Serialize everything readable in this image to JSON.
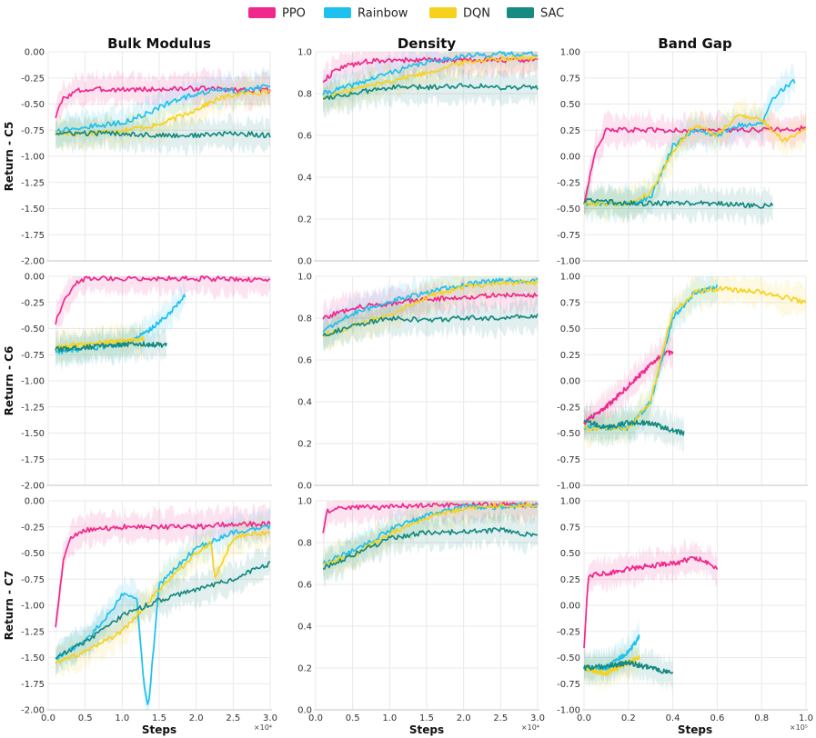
{
  "legend": [
    {
      "name": "PPO",
      "color": "#f0288c"
    },
    {
      "name": "Rainbow",
      "color": "#1ec0f0"
    },
    {
      "name": "DQN",
      "color": "#f6d21e"
    },
    {
      "name": "SAC",
      "color": "#178a82"
    }
  ],
  "column_titles": [
    "Bulk Modulus",
    "Density",
    "Band Gap"
  ],
  "row_labels": [
    "Return - C5",
    "Return - C6",
    "Return - C7"
  ],
  "xlabel": "Steps",
  "x_multipliers": [
    "×10⁴",
    "×10⁴",
    "×10⁵"
  ],
  "x_ticks": [
    [
      "0.0",
      "0.5",
      "1.0",
      "1.5",
      "2.0",
      "2.5",
      "3.0"
    ],
    [
      "0.0",
      "0.5",
      "1.0",
      "1.5",
      "2.0",
      "2.5",
      "3.0"
    ],
    [
      "0.0",
      "0.2",
      "0.4",
      "0.6",
      "0.8",
      "1.0"
    ]
  ],
  "y_ticks": [
    [
      "0.00",
      "-0.25",
      "-0.50",
      "-0.75",
      "-1.00",
      "-1.25",
      "-1.50",
      "-1.75",
      "-2.00"
    ],
    [
      "0.0",
      "0.2",
      "0.4",
      "0.6",
      "0.8",
      "1.0"
    ],
    [
      "1.00",
      "0.75",
      "0.50",
      "0.25",
      "0.00",
      "-0.25",
      "-0.50",
      "-0.75",
      "-1.00"
    ]
  ],
  "chart_data": [
    {
      "type": "line",
      "row": 0,
      "col": 0,
      "title": "Bulk Modulus",
      "ylabel": "Return - C5",
      "xlim": [
        0,
        3.0
      ],
      "ylim": [
        -2.0,
        0.0
      ],
      "series": [
        {
          "name": "PPO",
          "x": [
            0.1,
            0.2,
            0.4,
            0.7,
            1.0,
            1.5,
            2.0,
            2.5,
            3.0
          ],
          "values": [
            -0.62,
            -0.45,
            -0.37,
            -0.36,
            -0.36,
            -0.36,
            -0.35,
            -0.36,
            -0.37
          ]
        },
        {
          "name": "Rainbow",
          "x": [
            0.1,
            0.5,
            1.0,
            1.3,
            1.6,
            2.0,
            2.3,
            2.6,
            3.0
          ],
          "values": [
            -0.75,
            -0.72,
            -0.68,
            -0.6,
            -0.5,
            -0.4,
            -0.36,
            -0.38,
            -0.32
          ]
        },
        {
          "name": "DQN",
          "x": [
            0.1,
            0.5,
            1.0,
            1.5,
            2.0,
            2.3,
            2.6,
            3.0
          ],
          "values": [
            -0.78,
            -0.78,
            -0.75,
            -0.7,
            -0.55,
            -0.45,
            -0.4,
            -0.38
          ]
        },
        {
          "name": "SAC",
          "x": [
            0.1,
            0.5,
            1.0,
            1.5,
            2.0,
            2.5,
            3.0
          ],
          "values": [
            -0.78,
            -0.78,
            -0.78,
            -0.8,
            -0.8,
            -0.78,
            -0.8
          ]
        }
      ]
    },
    {
      "type": "line",
      "row": 0,
      "col": 1,
      "title": "Density",
      "ylabel": "",
      "xlim": [
        0,
        3.0
      ],
      "ylim": [
        0.0,
        1.0
      ],
      "series": [
        {
          "name": "PPO",
          "x": [
            0.1,
            0.3,
            0.6,
            1.0,
            1.5,
            2.0,
            2.5,
            3.0
          ],
          "values": [
            0.86,
            0.92,
            0.95,
            0.96,
            0.96,
            0.96,
            0.96,
            0.96
          ]
        },
        {
          "name": "Rainbow",
          "x": [
            0.1,
            0.5,
            1.0,
            1.5,
            2.0,
            2.5,
            3.0
          ],
          "values": [
            0.8,
            0.84,
            0.9,
            0.95,
            0.98,
            0.99,
            0.99
          ]
        },
        {
          "name": "DQN",
          "x": [
            0.1,
            0.5,
            1.0,
            1.5,
            2.0,
            2.5,
            3.0
          ],
          "values": [
            0.78,
            0.82,
            0.86,
            0.9,
            0.95,
            0.97,
            0.97
          ]
        },
        {
          "name": "SAC",
          "x": [
            0.1,
            0.5,
            1.0,
            1.5,
            2.0,
            2.5,
            3.0
          ],
          "values": [
            0.78,
            0.8,
            0.83,
            0.83,
            0.84,
            0.83,
            0.83
          ]
        }
      ]
    },
    {
      "type": "line",
      "row": 0,
      "col": 2,
      "title": "Band Gap",
      "ylabel": "",
      "xlim": [
        0,
        1.0
      ],
      "ylim": [
        -1.0,
        1.0
      ],
      "series": [
        {
          "name": "PPO",
          "x": [
            0.0,
            0.05,
            0.1,
            0.2,
            0.4,
            0.6,
            0.8,
            1.0
          ],
          "values": [
            -0.45,
            0.05,
            0.25,
            0.25,
            0.25,
            0.25,
            0.25,
            0.27
          ]
        },
        {
          "name": "Rainbow",
          "x": [
            0.0,
            0.2,
            0.3,
            0.4,
            0.5,
            0.6,
            0.7,
            0.8,
            0.85,
            0.9,
            0.95
          ],
          "values": [
            -0.45,
            -0.45,
            -0.4,
            0.1,
            0.25,
            0.2,
            0.3,
            0.3,
            0.55,
            0.65,
            0.72
          ]
        },
        {
          "name": "DQN",
          "x": [
            0.0,
            0.2,
            0.3,
            0.4,
            0.5,
            0.6,
            0.7,
            0.8,
            0.9,
            1.0
          ],
          "values": [
            -0.45,
            -0.45,
            -0.35,
            0.05,
            0.3,
            0.2,
            0.4,
            0.35,
            0.15,
            0.27
          ]
        },
        {
          "name": "SAC",
          "x": [
            0.0,
            0.2,
            0.4,
            0.6,
            0.8,
            0.85
          ],
          "values": [
            -0.42,
            -0.45,
            -0.45,
            -0.45,
            -0.48,
            -0.45
          ]
        }
      ]
    },
    {
      "type": "line",
      "row": 1,
      "col": 0,
      "title": "",
      "ylabel": "Return - C6",
      "xlim": [
        0,
        3.0
      ],
      "ylim": [
        -2.0,
        0.0
      ],
      "series": [
        {
          "name": "PPO",
          "x": [
            0.1,
            0.2,
            0.35,
            0.5,
            1.0,
            2.0,
            3.0
          ],
          "values": [
            -0.45,
            -0.25,
            -0.08,
            -0.02,
            -0.02,
            -0.02,
            -0.03
          ]
        },
        {
          "name": "Rainbow",
          "x": [
            0.1,
            0.5,
            1.0,
            1.3,
            1.6,
            1.85
          ],
          "values": [
            -0.72,
            -0.7,
            -0.65,
            -0.55,
            -0.38,
            -0.18
          ]
        },
        {
          "name": "DQN",
          "x": [
            0.1,
            0.5,
            1.0,
            1.3
          ],
          "values": [
            -0.68,
            -0.65,
            -0.62,
            -0.6
          ]
        },
        {
          "name": "SAC",
          "x": [
            0.1,
            0.5,
            1.0,
            1.3,
            1.6
          ],
          "values": [
            -0.7,
            -0.68,
            -0.65,
            -0.65,
            -0.66
          ]
        }
      ]
    },
    {
      "type": "line",
      "row": 1,
      "col": 1,
      "title": "",
      "ylabel": "",
      "xlim": [
        0,
        3.0
      ],
      "ylim": [
        0.0,
        1.0
      ],
      "series": [
        {
          "name": "PPO",
          "x": [
            0.1,
            0.5,
            1.0,
            1.5,
            2.0,
            2.5,
            3.0
          ],
          "values": [
            0.8,
            0.85,
            0.87,
            0.89,
            0.9,
            0.91,
            0.91
          ]
        },
        {
          "name": "Rainbow",
          "x": [
            0.1,
            0.5,
            1.0,
            1.5,
            2.0,
            2.5,
            3.0
          ],
          "values": [
            0.74,
            0.82,
            0.88,
            0.92,
            0.96,
            0.98,
            0.98
          ]
        },
        {
          "name": "DQN",
          "x": [
            0.1,
            0.5,
            1.0,
            1.5,
            2.0,
            2.5,
            3.0
          ],
          "values": [
            0.72,
            0.76,
            0.82,
            0.9,
            0.95,
            0.97,
            0.97
          ]
        },
        {
          "name": "SAC",
          "x": [
            0.1,
            0.5,
            1.0,
            1.5,
            2.0,
            2.5,
            3.0
          ],
          "values": [
            0.72,
            0.76,
            0.8,
            0.79,
            0.8,
            0.8,
            0.81
          ]
        }
      ]
    },
    {
      "type": "line",
      "row": 1,
      "col": 2,
      "title": "",
      "ylabel": "",
      "xlim": [
        0,
        1.0
      ],
      "ylim": [
        -1.0,
        1.0
      ],
      "series": [
        {
          "name": "PPO",
          "x": [
            0.0,
            0.1,
            0.2,
            0.3,
            0.35,
            0.4
          ],
          "values": [
            -0.4,
            -0.25,
            -0.05,
            0.15,
            0.25,
            0.28
          ]
        },
        {
          "name": "Rainbow",
          "x": [
            0.0,
            0.2,
            0.3,
            0.35,
            0.4,
            0.5,
            0.6
          ],
          "values": [
            -0.45,
            -0.45,
            -0.2,
            0.2,
            0.6,
            0.85,
            0.9
          ]
        },
        {
          "name": "DQN",
          "x": [
            0.0,
            0.2,
            0.3,
            0.35,
            0.4,
            0.5,
            0.6,
            0.8,
            1.0
          ],
          "values": [
            -0.45,
            -0.45,
            -0.2,
            0.25,
            0.65,
            0.85,
            0.88,
            0.85,
            0.75
          ]
        },
        {
          "name": "SAC",
          "x": [
            0.0,
            0.1,
            0.2,
            0.3,
            0.4,
            0.45
          ],
          "values": [
            -0.38,
            -0.45,
            -0.4,
            -0.4,
            -0.48,
            -0.5
          ]
        }
      ]
    },
    {
      "type": "line",
      "row": 2,
      "col": 0,
      "title": "",
      "ylabel": "Return - C7",
      "xlim": [
        0,
        3.0
      ],
      "ylim": [
        -2.0,
        0.0
      ],
      "series": [
        {
          "name": "PPO",
          "x": [
            0.1,
            0.2,
            0.3,
            0.5,
            1.0,
            1.5,
            2.0,
            2.5,
            3.0
          ],
          "values": [
            -1.2,
            -0.6,
            -0.35,
            -0.28,
            -0.25,
            -0.25,
            -0.25,
            -0.22,
            -0.22
          ]
        },
        {
          "name": "Rainbow",
          "x": [
            0.1,
            0.5,
            0.8,
            1.0,
            1.2,
            1.3,
            1.35,
            1.5,
            2.0,
            2.5,
            3.0
          ],
          "values": [
            -1.5,
            -1.35,
            -1.1,
            -0.9,
            -0.95,
            -1.8,
            -2.0,
            -0.8,
            -0.45,
            -0.3,
            -0.25
          ]
        },
        {
          "name": "DQN",
          "x": [
            0.1,
            0.5,
            1.0,
            1.5,
            2.0,
            2.2,
            2.25,
            2.5,
            3.0
          ],
          "values": [
            -1.55,
            -1.45,
            -1.25,
            -0.85,
            -0.5,
            -0.4,
            -0.75,
            -0.35,
            -0.3
          ]
        },
        {
          "name": "SAC",
          "x": [
            0.1,
            0.5,
            1.0,
            1.5,
            2.0,
            2.5,
            3.0
          ],
          "values": [
            -1.5,
            -1.35,
            -1.1,
            -0.95,
            -0.85,
            -0.75,
            -0.6
          ]
        }
      ]
    },
    {
      "type": "line",
      "row": 2,
      "col": 1,
      "title": "",
      "ylabel": "",
      "xlim": [
        0,
        3.0
      ],
      "ylim": [
        0.0,
        1.0
      ],
      "series": [
        {
          "name": "PPO",
          "x": [
            0.1,
            0.15,
            0.3,
            0.5,
            1.0,
            1.5,
            2.0,
            2.5,
            3.0
          ],
          "values": [
            0.85,
            0.95,
            0.97,
            0.97,
            0.97,
            0.98,
            0.98,
            0.98,
            0.98
          ]
        },
        {
          "name": "Rainbow",
          "x": [
            0.1,
            0.5,
            1.0,
            1.5,
            2.0,
            2.5,
            3.0
          ],
          "values": [
            0.7,
            0.76,
            0.86,
            0.93,
            0.97,
            0.97,
            0.98
          ]
        },
        {
          "name": "DQN",
          "x": [
            0.1,
            0.5,
            1.0,
            1.5,
            2.0,
            2.5,
            3.0
          ],
          "values": [
            0.7,
            0.74,
            0.84,
            0.92,
            0.96,
            0.98,
            0.98
          ]
        },
        {
          "name": "SAC",
          "x": [
            0.1,
            0.5,
            1.0,
            1.5,
            2.0,
            2.5,
            3.0
          ],
          "values": [
            0.68,
            0.74,
            0.82,
            0.85,
            0.85,
            0.86,
            0.83
          ]
        }
      ]
    },
    {
      "type": "line",
      "row": 2,
      "col": 2,
      "title": "",
      "ylabel": "",
      "xlim": [
        0,
        1.0
      ],
      "ylim": [
        -1.0,
        1.0
      ],
      "series": [
        {
          "name": "PPO",
          "x": [
            0.0,
            0.02,
            0.05,
            0.1,
            0.2,
            0.3,
            0.4,
            0.5,
            0.55,
            0.6
          ],
          "values": [
            -0.4,
            0.28,
            0.3,
            0.3,
            0.35,
            0.38,
            0.4,
            0.45,
            0.42,
            0.35
          ]
        },
        {
          "name": "Rainbow",
          "x": [
            0.0,
            0.1,
            0.2,
            0.25
          ],
          "values": [
            -0.6,
            -0.6,
            -0.45,
            -0.3
          ]
        },
        {
          "name": "DQN",
          "x": [
            0.0,
            0.1,
            0.2,
            0.25
          ],
          "values": [
            -0.6,
            -0.65,
            -0.55,
            -0.5
          ]
        },
        {
          "name": "SAC",
          "x": [
            0.0,
            0.1,
            0.2,
            0.3,
            0.4
          ],
          "values": [
            -0.6,
            -0.58,
            -0.55,
            -0.6,
            -0.65
          ]
        }
      ]
    }
  ]
}
